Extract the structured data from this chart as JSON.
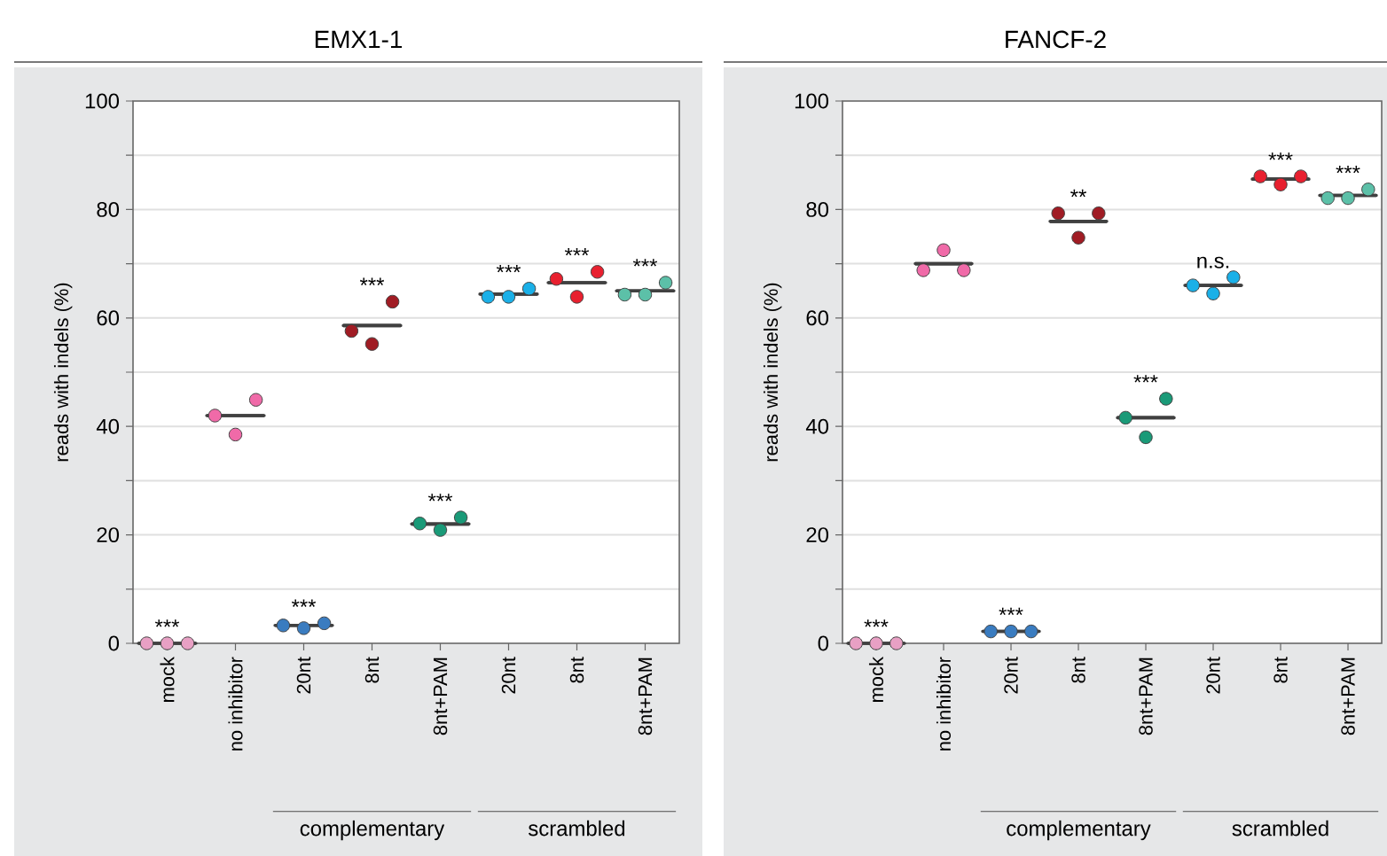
{
  "chart_data": [
    {
      "type": "scatter",
      "title": "EMX1-1",
      "ylabel": "reads with indels (%)",
      "categories": [
        "mock",
        "no inhibitor",
        "20nt",
        "8nt",
        "8nt+PAM",
        "20nt",
        "8nt",
        "8nt+PAM"
      ],
      "ylim": [
        0,
        100
      ],
      "yticks": [
        0,
        {
          "value": 10,
          "label": null
        },
        20,
        {
          "value": 30,
          "label": null
        },
        40,
        {
          "value": 50,
          "label": null
        },
        60,
        {
          "value": 70,
          "label": null
        },
        80,
        {
          "value": 90,
          "label": null
        },
        100
      ],
      "grid": "y",
      "marker": "circle",
      "series": [
        {
          "colors": [
            "#e8a0c4",
            "#f06aa8",
            "#3a7cc0",
            "#a01c24",
            "#1a9a78",
            "#1ab0e8",
            "#e8202f",
            "#5cc0a8"
          ],
          "values": [
            0,
            42,
            3.3,
            57.6,
            22.1,
            63.9,
            67.2,
            64.3
          ]
        },
        {
          "colors": [
            "#e8a0c4",
            "#f06aa8",
            "#3a7cc0",
            "#a01c24",
            "#1a9a78",
            "#1ab0e8",
            "#e8202f",
            "#5cc0a8"
          ],
          "values": [
            0,
            38.5,
            2.8,
            55.2,
            20.9,
            63.9,
            63.9,
            64.3
          ]
        },
        {
          "colors": [
            "#e8a0c4",
            "#f06aa8",
            "#3a7cc0",
            "#a01c24",
            "#1a9a78",
            "#1ab0e8",
            "#e8202f",
            "#5cc0a8"
          ],
          "values": [
            0,
            44.9,
            3.7,
            63,
            23.2,
            65.4,
            68.5,
            66.5
          ]
        },
        {
          "type": "box",
          "color": "#404040",
          "boxes": [
            {
              "low": 0,
              "q1": 0,
              "median": 0,
              "q3": 0,
              "high": 0
            },
            {
              "low": 42,
              "q1": 42,
              "median": 42,
              "q3": 42,
              "high": 42
            },
            {
              "low": 3.3,
              "q1": 3.3,
              "median": 3.3,
              "q3": 3.3,
              "high": 3.3
            },
            {
              "low": 58.6,
              "q1": 58.6,
              "median": 58.6,
              "q3": 58.6,
              "high": 58.6
            },
            {
              "low": 22,
              "q1": 22,
              "median": 22,
              "q3": 22,
              "high": 22
            },
            {
              "low": 64.4,
              "q1": 64.4,
              "median": 64.4,
              "q3": 64.4,
              "high": 64.4
            },
            {
              "low": 66.5,
              "q1": 66.5,
              "median": 66.5,
              "q3": 66.5,
              "high": 66.5
            },
            {
              "low": 65,
              "q1": 65,
              "median": 65,
              "q3": 65,
              "high": 65
            }
          ],
          "value_labels": [
            "***",
            null,
            "***",
            "***",
            "***",
            "***",
            "***",
            "***"
          ]
        }
      ],
      "annotations": [
        "complementary",
        "scrambled"
      ]
    },
    {
      "type": "scatter",
      "title": "FANCF-2",
      "ylabel": "reads with indels (%)",
      "categories": [
        "mock",
        "no inhibitor",
        "20nt",
        "8nt",
        "8nt+PAM",
        "20nt",
        "8nt",
        "8nt+PAM"
      ],
      "ylim": [
        0,
        100
      ],
      "yticks": [
        0,
        {
          "value": 10,
          "label": null
        },
        20,
        {
          "value": 30,
          "label": null
        },
        40,
        {
          "value": 50,
          "label": null
        },
        60,
        {
          "value": 70,
          "label": null
        },
        80,
        {
          "value": 90,
          "label": null
        },
        100
      ],
      "grid": "y",
      "marker": "circle",
      "series": [
        {
          "colors": [
            "#e8a0c4",
            "#f06aa8",
            "#3a7cc0",
            "#a01c24",
            "#1a9a78",
            "#1ab0e8",
            "#e8202f",
            "#5cc0a8"
          ],
          "values": [
            0,
            68.8,
            2.2,
            79.3,
            41.6,
            66,
            86.1,
            82.1
          ]
        },
        {
          "colors": [
            "#e8a0c4",
            "#f06aa8",
            "#3a7cc0",
            "#a01c24",
            "#1a9a78",
            "#1ab0e8",
            "#e8202f",
            "#5cc0a8"
          ],
          "values": [
            0,
            72.5,
            2.2,
            74.8,
            38,
            64.5,
            84.6,
            82.1
          ]
        },
        {
          "colors": [
            "#e8a0c4",
            "#f06aa8",
            "#3a7cc0",
            "#a01c24",
            "#1a9a78",
            "#1ab0e8",
            "#e8202f",
            "#5cc0a8"
          ],
          "values": [
            0,
            68.8,
            2.2,
            79.3,
            45.1,
            67.5,
            86.1,
            83.7
          ]
        },
        {
          "type": "box",
          "color": "#404040",
          "boxes": [
            {
              "low": 0,
              "q1": 0,
              "median": 0,
              "q3": 0,
              "high": 0
            },
            {
              "low": 70,
              "q1": 70,
              "median": 70,
              "q3": 70,
              "high": 70
            },
            {
              "low": 2.2,
              "q1": 2.2,
              "median": 2.2,
              "q3": 2.2,
              "high": 2.2
            },
            {
              "low": 77.8,
              "q1": 77.8,
              "median": 77.8,
              "q3": 77.8,
              "high": 77.8
            },
            {
              "low": 41.6,
              "q1": 41.6,
              "median": 41.6,
              "q3": 41.6,
              "high": 41.6
            },
            {
              "low": 66,
              "q1": 66,
              "median": 66,
              "q3": 66,
              "high": 66
            },
            {
              "low": 85.6,
              "q1": 85.6,
              "median": 85.6,
              "q3": 85.6,
              "high": 85.6
            },
            {
              "low": 82.6,
              "q1": 82.6,
              "median": 82.6,
              "q3": 82.6,
              "high": 82.6
            }
          ],
          "value_labels": [
            "***",
            null,
            "***",
            "**",
            "***",
            "n.s.",
            "***",
            "***"
          ]
        }
      ],
      "annotations": [
        "complementary",
        "scrambled"
      ]
    }
  ]
}
